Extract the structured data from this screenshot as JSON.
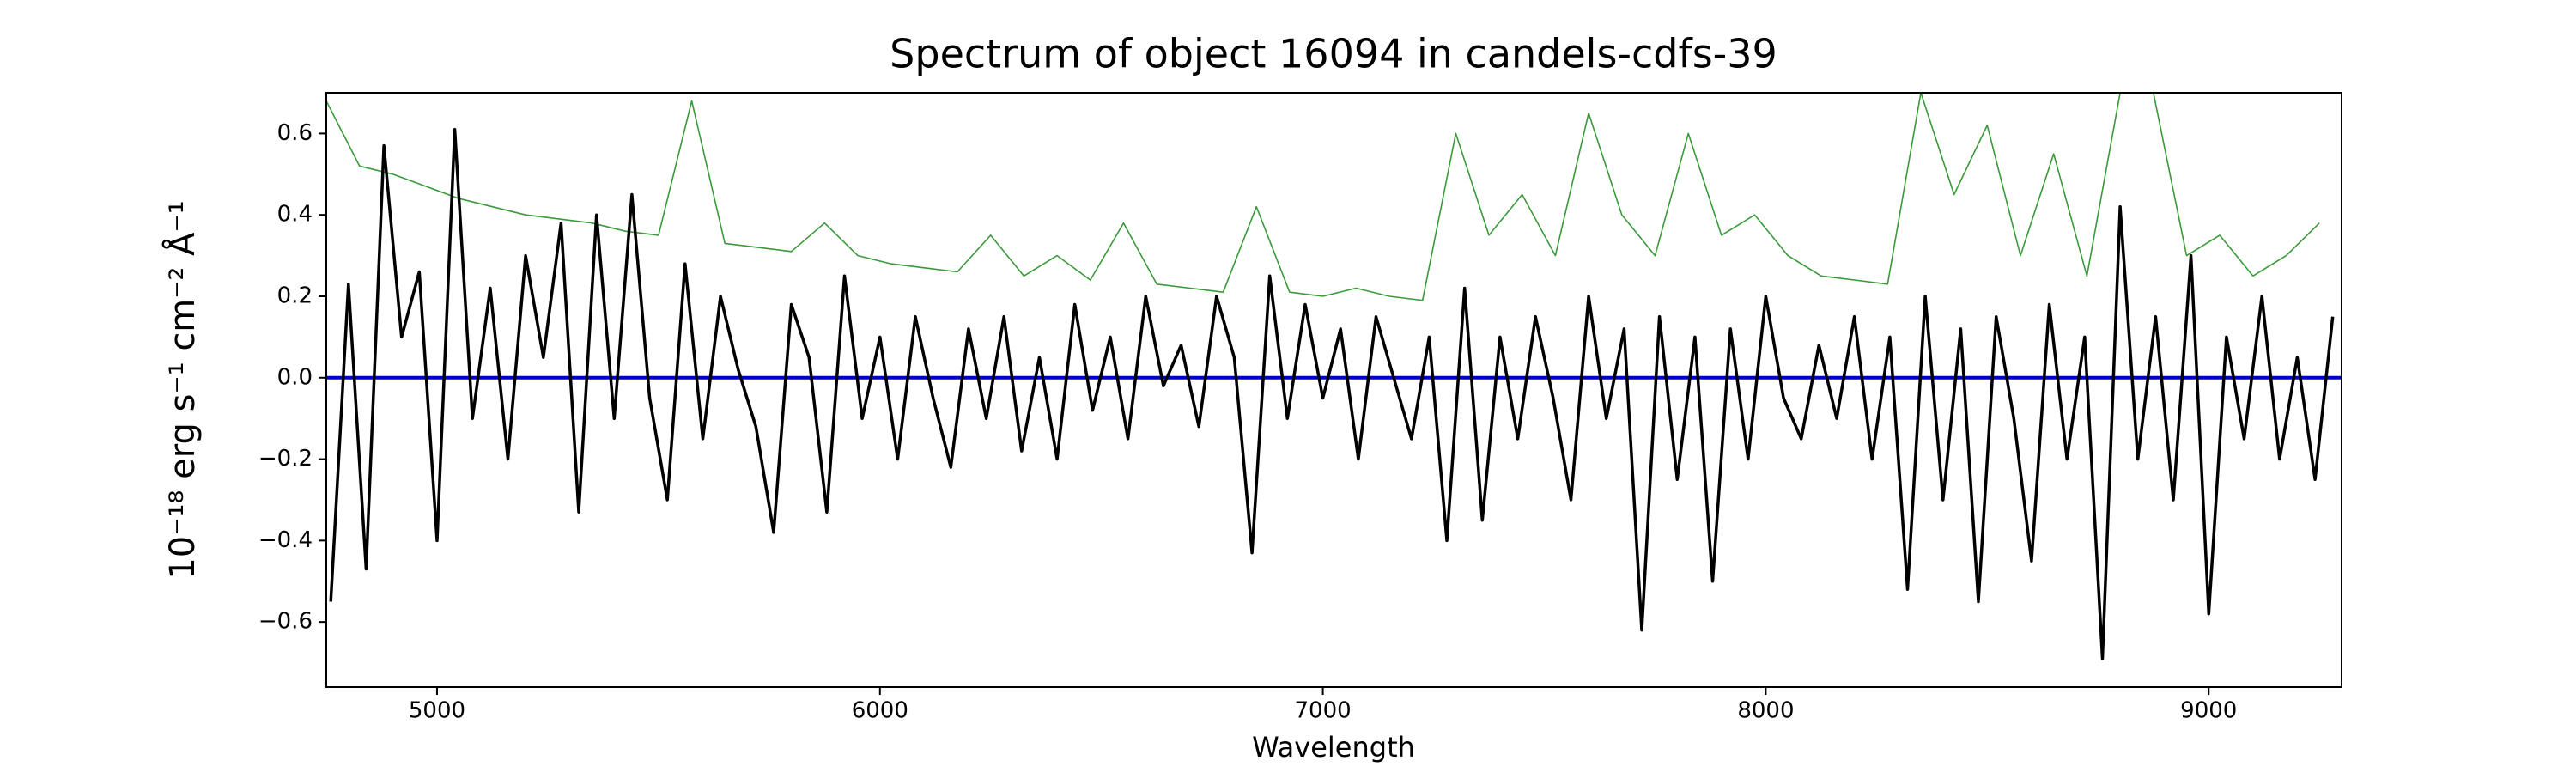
{
  "chart_data": {
    "type": "line",
    "title": "Spectrum of object 16094 in candels-cdfs-39",
    "xlabel": "Wavelength",
    "ylabel": "10⁻¹⁸ erg s⁻¹ cm⁻² Å⁻¹",
    "xlim": [
      4750,
      9300
    ],
    "ylim": [
      -0.76,
      0.7
    ],
    "xticks": [
      5000,
      6000,
      7000,
      8000,
      9000
    ],
    "yticks": [
      {
        "value": -0.6,
        "label": "−0.6"
      },
      {
        "value": -0.4,
        "label": "−0.4"
      },
      {
        "value": -0.2,
        "label": "−0.2"
      },
      {
        "value": 0,
        "label": "0.0"
      },
      0.2,
      0.4,
      0.6
    ],
    "series": [
      {
        "color": "#3a9a3a",
        "width": 1.6,
        "x": [
          4750,
          4825,
          4900,
          4975,
          5050,
          5125,
          5200,
          5275,
          5350,
          5425,
          5500,
          5575,
          5650,
          5725,
          5800,
          5875,
          5950,
          6025,
          6100,
          6175,
          6250,
          6325,
          6400,
          6475,
          6550,
          6625,
          6700,
          6775,
          6850,
          6925,
          7000,
          7075,
          7150,
          7225,
          7300,
          7375,
          7450,
          7525,
          7600,
          7675,
          7750,
          7825,
          7900,
          7975,
          8050,
          8125,
          8200,
          8275,
          8350,
          8425,
          8500,
          8575,
          8650,
          8725,
          8800,
          8875,
          8950,
          9025,
          9100,
          9175,
          9250
        ],
        "values": [
          0.68,
          0.52,
          0.5,
          0.47,
          0.44,
          0.42,
          0.4,
          0.39,
          0.38,
          0.36,
          0.35,
          0.68,
          0.33,
          0.32,
          0.31,
          0.38,
          0.3,
          0.28,
          0.27,
          0.26,
          0.35,
          0.25,
          0.3,
          0.24,
          0.38,
          0.23,
          0.22,
          0.21,
          0.42,
          0.21,
          0.2,
          0.22,
          0.2,
          0.19,
          0.6,
          0.35,
          0.45,
          0.3,
          0.65,
          0.4,
          0.3,
          0.6,
          0.35,
          0.4,
          0.3,
          0.25,
          0.24,
          0.23,
          0.7,
          0.45,
          0.62,
          0.3,
          0.55,
          0.25,
          0.7,
          0.7,
          0.3,
          0.35,
          0.25,
          0.3,
          0.38
        ]
      },
      {
        "color": "#0000cc",
        "width": 4,
        "x": [
          4750,
          9300
        ],
        "values": [
          0,
          0
        ]
      },
      {
        "color": "#000000",
        "width": 3.5,
        "x": [
          4760,
          4800,
          4840,
          4880,
          4920,
          4960,
          5000,
          5040,
          5080,
          5120,
          5160,
          5200,
          5240,
          5280,
          5320,
          5360,
          5400,
          5440,
          5480,
          5520,
          5560,
          5600,
          5640,
          5680,
          5720,
          5760,
          5800,
          5840,
          5880,
          5920,
          5960,
          6000,
          6040,
          6080,
          6120,
          6160,
          6200,
          6240,
          6280,
          6320,
          6360,
          6400,
          6440,
          6480,
          6520,
          6560,
          6600,
          6640,
          6680,
          6720,
          6760,
          6800,
          6840,
          6880,
          6920,
          6960,
          7000,
          7040,
          7080,
          7120,
          7160,
          7200,
          7240,
          7280,
          7320,
          7360,
          7400,
          7440,
          7480,
          7520,
          7560,
          7600,
          7640,
          7680,
          7720,
          7760,
          7800,
          7840,
          7880,
          7920,
          7960,
          8000,
          8040,
          8080,
          8120,
          8160,
          8200,
          8240,
          8280,
          8320,
          8360,
          8400,
          8440,
          8480,
          8520,
          8560,
          8600,
          8640,
          8680,
          8720,
          8760,
          8800,
          8840,
          8880,
          8920,
          8960,
          9000,
          9040,
          9080,
          9120,
          9160,
          9200,
          9240,
          9280
        ],
        "values": [
          -0.55,
          0.23,
          -0.47,
          0.57,
          0.1,
          0.26,
          -0.4,
          0.61,
          -0.1,
          0.22,
          -0.2,
          0.3,
          0.05,
          0.38,
          -0.33,
          0.4,
          -0.1,
          0.45,
          -0.05,
          -0.3,
          0.28,
          -0.15,
          0.2,
          0.02,
          -0.12,
          -0.38,
          0.18,
          0.05,
          -0.33,
          0.25,
          -0.1,
          0.1,
          -0.2,
          0.15,
          -0.05,
          -0.22,
          0.12,
          -0.1,
          0.15,
          -0.18,
          0.05,
          -0.2,
          0.18,
          -0.08,
          0.1,
          -0.15,
          0.2,
          -0.02,
          0.08,
          -0.12,
          0.2,
          0.05,
          -0.43,
          0.25,
          -0.1,
          0.18,
          -0.05,
          0.12,
          -0.2,
          0.15,
          0,
          -0.15,
          0.1,
          -0.4,
          0.22,
          -0.35,
          0.1,
          -0.15,
          0.15,
          -0.05,
          -0.3,
          0.2,
          -0.1,
          0.12,
          -0.62,
          0.15,
          -0.25,
          0.1,
          -0.5,
          0.12,
          -0.2,
          0.2,
          -0.05,
          -0.15,
          0.08,
          -0.1,
          0.15,
          -0.2,
          0.1,
          -0.52,
          0.2,
          -0.3,
          0.12,
          -0.55,
          0.15,
          -0.1,
          -0.45,
          0.18,
          -0.2,
          0.1,
          -0.69,
          0.42,
          -0.2,
          0.15,
          -0.3,
          0.3,
          -0.58,
          0.1,
          -0.15,
          0.2,
          -0.2,
          0.05,
          -0.25,
          0.15
        ]
      }
    ]
  }
}
